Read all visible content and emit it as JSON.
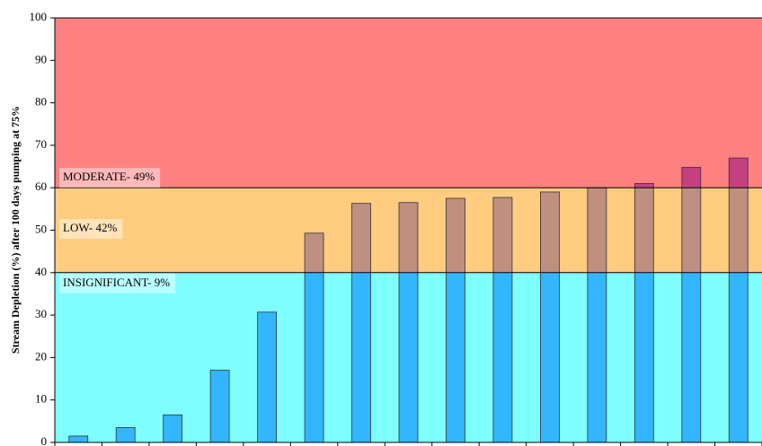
{
  "chart_data": {
    "type": "bar",
    "y_label": "Stream Depletion (%) after 100 days pumping at 75%",
    "values": [
      1.5,
      3.5,
      6.5,
      17,
      30.7,
      49.3,
      56.3,
      56.5,
      57.5,
      57.7,
      59,
      60,
      61,
      64.8,
      67
    ],
    "ylim": [
      0,
      100
    ],
    "yticks": [
      0,
      10,
      20,
      30,
      40,
      50,
      60,
      70,
      80,
      90,
      100
    ],
    "zones": [
      {
        "label": "INSIGNIFICANT- 9%",
        "from": 0,
        "to": 40,
        "color": "#80ffff",
        "bar_color": "#33b5ff"
      },
      {
        "label": "LOW- 42%",
        "from": 40,
        "to": 60,
        "color": "#ffcc80",
        "bar_color": "#bf8f80"
      },
      {
        "label": "MODERATE- 49%",
        "from": 60,
        "to": 100,
        "color": "#ff8080",
        "bar_color": "#c44080"
      }
    ]
  }
}
